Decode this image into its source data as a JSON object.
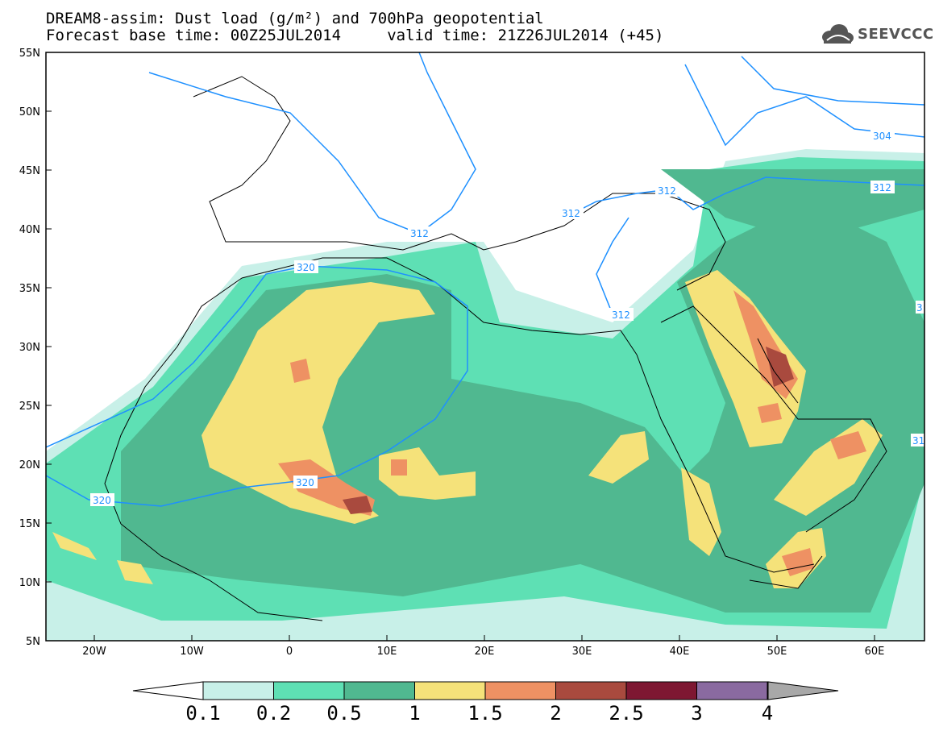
{
  "title": {
    "line1": "DREAM8-assim: Dust load (g/m²) and 700hPa geopotential",
    "line2": "Forecast base time: 00Z25JUL2014     valid time: 21Z26JUL2014 (+45)"
  },
  "logo": {
    "text": "SEEVCCC",
    "icon": "cloud-logo-icon"
  },
  "map": {
    "lon_range": [
      -25,
      65
    ],
    "lat_range": [
      5,
      55
    ],
    "lat_ticks": [
      "55N",
      "50N",
      "45N",
      "40N",
      "35N",
      "30N",
      "25N",
      "20N",
      "15N",
      "10N",
      "5N"
    ],
    "lon_ticks": [
      "20W",
      "10W",
      "0",
      "10E",
      "20E",
      "30E",
      "40E",
      "50E",
      "60E"
    ]
  },
  "contours": {
    "color": "#1e90ff",
    "labels": [
      "320",
      "320",
      "320",
      "312",
      "312",
      "312",
      "312",
      "312",
      "304",
      "3",
      "31"
    ]
  },
  "colorbar": {
    "labels": [
      "0.1",
      "0.2",
      "0.5",
      "1",
      "1.5",
      "2",
      "2.5",
      "3",
      "4"
    ],
    "colors": [
      "#c8f0e8",
      "#5ee0b4",
      "#50b890",
      "#f5e27a",
      "#ee9163",
      "#a94a3e",
      "#7e1732",
      "#8a6aa0",
      "#a8a8a8"
    ]
  }
}
